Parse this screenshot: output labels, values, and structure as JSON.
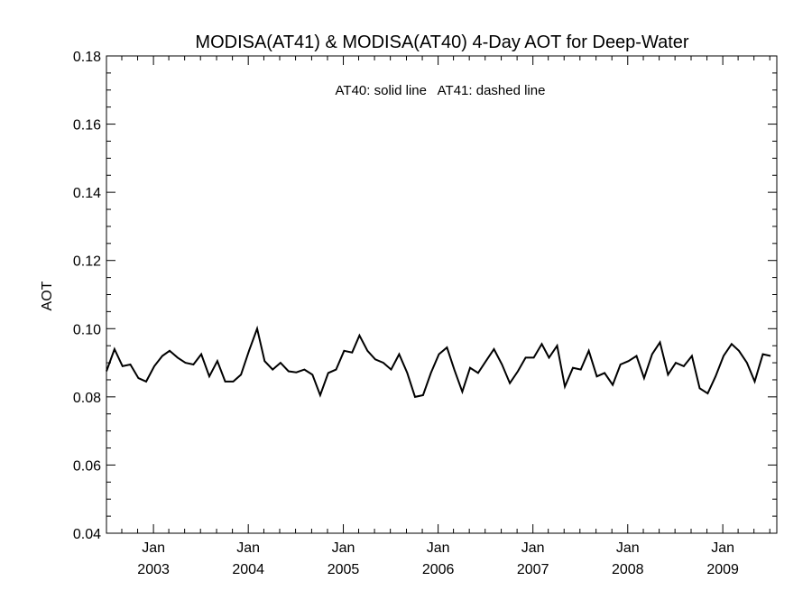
{
  "chart_data": {
    "type": "line",
    "title": "MODISA(AT41) & MODISA(AT40) 4-Day AOT for Deep-Water",
    "annotation": "AT40: solid line   AT41: dashed line",
    "xlabel": "",
    "ylabel": "AOT",
    "xlim": [
      "2002-07-04",
      "2009-07-28"
    ],
    "ylim": [
      0.04,
      0.18
    ],
    "y_ticks": [
      0.04,
      0.06,
      0.08,
      0.1,
      0.12,
      0.14,
      0.16,
      0.18
    ],
    "y_tick_labels": [
      "0.04",
      "0.06",
      "0.08",
      "0.10",
      "0.12",
      "0.14",
      "0.16",
      "0.18"
    ],
    "x_ticks": [
      {
        "date": "2003-01-01",
        "month": "Jan",
        "year": "2003"
      },
      {
        "date": "2004-01-01",
        "month": "Jan",
        "year": "2004"
      },
      {
        "date": "2005-01-01",
        "month": "Jan",
        "year": "2005"
      },
      {
        "date": "2006-01-01",
        "month": "Jan",
        "year": "2006"
      },
      {
        "date": "2007-01-01",
        "month": "Jan",
        "year": "2007"
      },
      {
        "date": "2008-01-01",
        "month": "Jan",
        "year": "2008"
      },
      {
        "date": "2009-01-01",
        "month": "Jan",
        "year": "2009"
      }
    ],
    "grid": false,
    "series": [
      {
        "name": "AT40",
        "style": "solid",
        "color": "#000000",
        "x": [
          "2002-07-04",
          "2002-08-04",
          "2002-09-04",
          "2002-10-04",
          "2002-11-04",
          "2002-12-04",
          "2003-01-04",
          "2003-02-04",
          "2003-03-04",
          "2003-04-04",
          "2003-05-04",
          "2003-06-04",
          "2003-07-04",
          "2003-08-04",
          "2003-09-04",
          "2003-10-04",
          "2003-11-04",
          "2003-12-04",
          "2004-01-04",
          "2004-02-04",
          "2004-03-04",
          "2004-04-04",
          "2004-05-04",
          "2004-06-04",
          "2004-07-04",
          "2004-08-04",
          "2004-09-04",
          "2004-10-04",
          "2004-11-04",
          "2004-12-04",
          "2005-01-04",
          "2005-02-04",
          "2005-03-04",
          "2005-04-04",
          "2005-05-04",
          "2005-06-04",
          "2005-07-04",
          "2005-08-04",
          "2005-09-04",
          "2005-10-04",
          "2005-11-04",
          "2005-12-04",
          "2006-01-04",
          "2006-02-04",
          "2006-03-04",
          "2006-04-04",
          "2006-05-04",
          "2006-06-04",
          "2006-07-04",
          "2006-08-04",
          "2006-09-04",
          "2006-10-04",
          "2006-11-04",
          "2006-12-04",
          "2007-01-04",
          "2007-02-04",
          "2007-03-04",
          "2007-04-04",
          "2007-05-04",
          "2007-06-04",
          "2007-07-04",
          "2007-08-04",
          "2007-09-04",
          "2007-10-04",
          "2007-11-04",
          "2007-12-04",
          "2008-01-04",
          "2008-02-04",
          "2008-03-04",
          "2008-04-04",
          "2008-05-04",
          "2008-06-04",
          "2008-07-04",
          "2008-08-04",
          "2008-09-04",
          "2008-10-04",
          "2008-11-04",
          "2008-12-04",
          "2009-01-04",
          "2009-02-04",
          "2009-03-04",
          "2009-04-04",
          "2009-05-04",
          "2009-06-04",
          "2009-07-04"
        ],
        "values": [
          0.0875,
          0.094,
          0.089,
          0.0895,
          0.0855,
          0.0845,
          0.089,
          0.092,
          0.0935,
          0.0915,
          0.09,
          0.0895,
          0.0925,
          0.086,
          0.0905,
          0.0845,
          0.0845,
          0.0865,
          0.0935,
          0.1,
          0.0905,
          0.088,
          0.09,
          0.0875,
          0.0872,
          0.088,
          0.0865,
          0.0805,
          0.087,
          0.088,
          0.0935,
          0.093,
          0.098,
          0.0935,
          0.091,
          0.09,
          0.088,
          0.0925,
          0.087,
          0.08,
          0.0805,
          0.087,
          0.0925,
          0.0945,
          0.088,
          0.0815,
          0.0885,
          0.087,
          0.0905,
          0.094,
          0.0895,
          0.084,
          0.0875,
          0.0915,
          0.0915,
          0.0955,
          0.0915,
          0.095,
          0.083,
          0.0885,
          0.088,
          0.0935,
          0.086,
          0.087,
          0.0835,
          0.0895,
          0.0905,
          0.092,
          0.0855,
          0.0925,
          0.096,
          0.0865,
          0.09,
          0.089,
          0.092,
          0.0825,
          0.081,
          0.086,
          0.092,
          0.0955,
          0.0935,
          0.09,
          0.0845,
          0.0925,
          0.092
        ]
      }
    ]
  }
}
